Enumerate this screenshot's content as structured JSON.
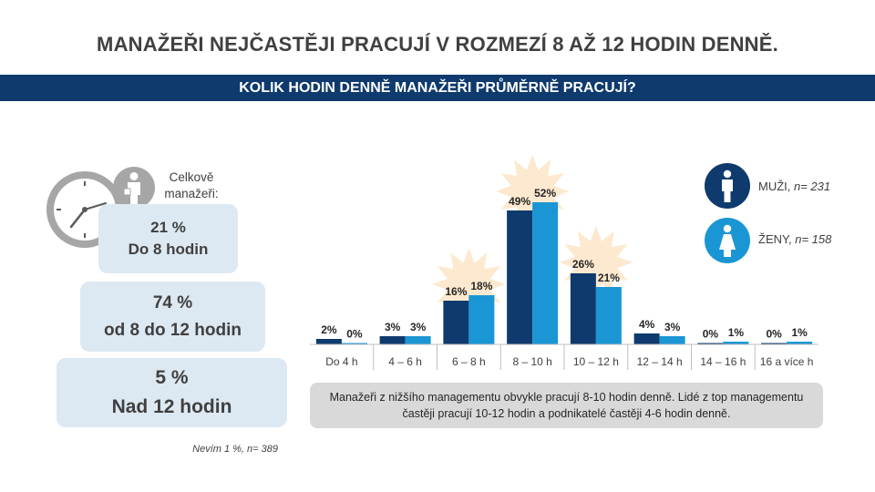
{
  "title": "MANAŽEŘI NEJČASTĚJI PRACUJÍ V ROZMEZÍ 8 AŽ 12 HODIN DENNĚ.",
  "subtitle": "KOLIK HODIN DENNĚ MANAŽEŘI PRŮMĚRNĚ PRACUJÍ?",
  "summary": {
    "label_line1": "Celkově",
    "label_line2": "manažeři:",
    "boxes": [
      {
        "value": "21 %",
        "text": "Do 8 hodin"
      },
      {
        "value": "74 %",
        "text": "od 8 do 12 hodin"
      },
      {
        "value": "5 %",
        "text": "Nad 12 hodin"
      }
    ],
    "footnote_text": "Nevím 1 %, ",
    "footnote_n": "n= 389"
  },
  "legend": {
    "men_label": "MUŽI, ",
    "men_n": "n= 231",
    "women_label": "ŽENY, ",
    "women_n": "n= 158"
  },
  "note": "Manažeři z nižšího managementu obvykle pracují 8-10 hodin denně. Lidé z top managementu častěji pracují 10-12 hodin a podnikatelé častěji 4-6 hodin denně.",
  "colors": {
    "men": "#0e3a6e",
    "women": "#1a96d4",
    "burst": "#fde9cf",
    "box": "#dde9f2",
    "note_box": "#d9d9d9"
  },
  "chart_data": {
    "type": "bar",
    "categories": [
      "Do 4 h",
      "4 – 6 h",
      "6 – 8 h",
      "8 – 10 h",
      "10 – 12 h",
      "12 – 14 h",
      "14 – 16 h",
      "16 a více h"
    ],
    "series": [
      {
        "name": "MUŽI",
        "values": [
          2,
          3,
          16,
          49,
          26,
          4,
          0,
          0
        ]
      },
      {
        "name": "ŽENY",
        "values": [
          0,
          3,
          18,
          52,
          21,
          3,
          1,
          1
        ]
      }
    ],
    "value_suffix": "%",
    "highlighted_categories": [
      "6 – 8 h",
      "8 – 10 h",
      "10 – 12 h"
    ],
    "ylim": [
      0,
      55
    ],
    "grid": false,
    "legend_position": "right"
  }
}
